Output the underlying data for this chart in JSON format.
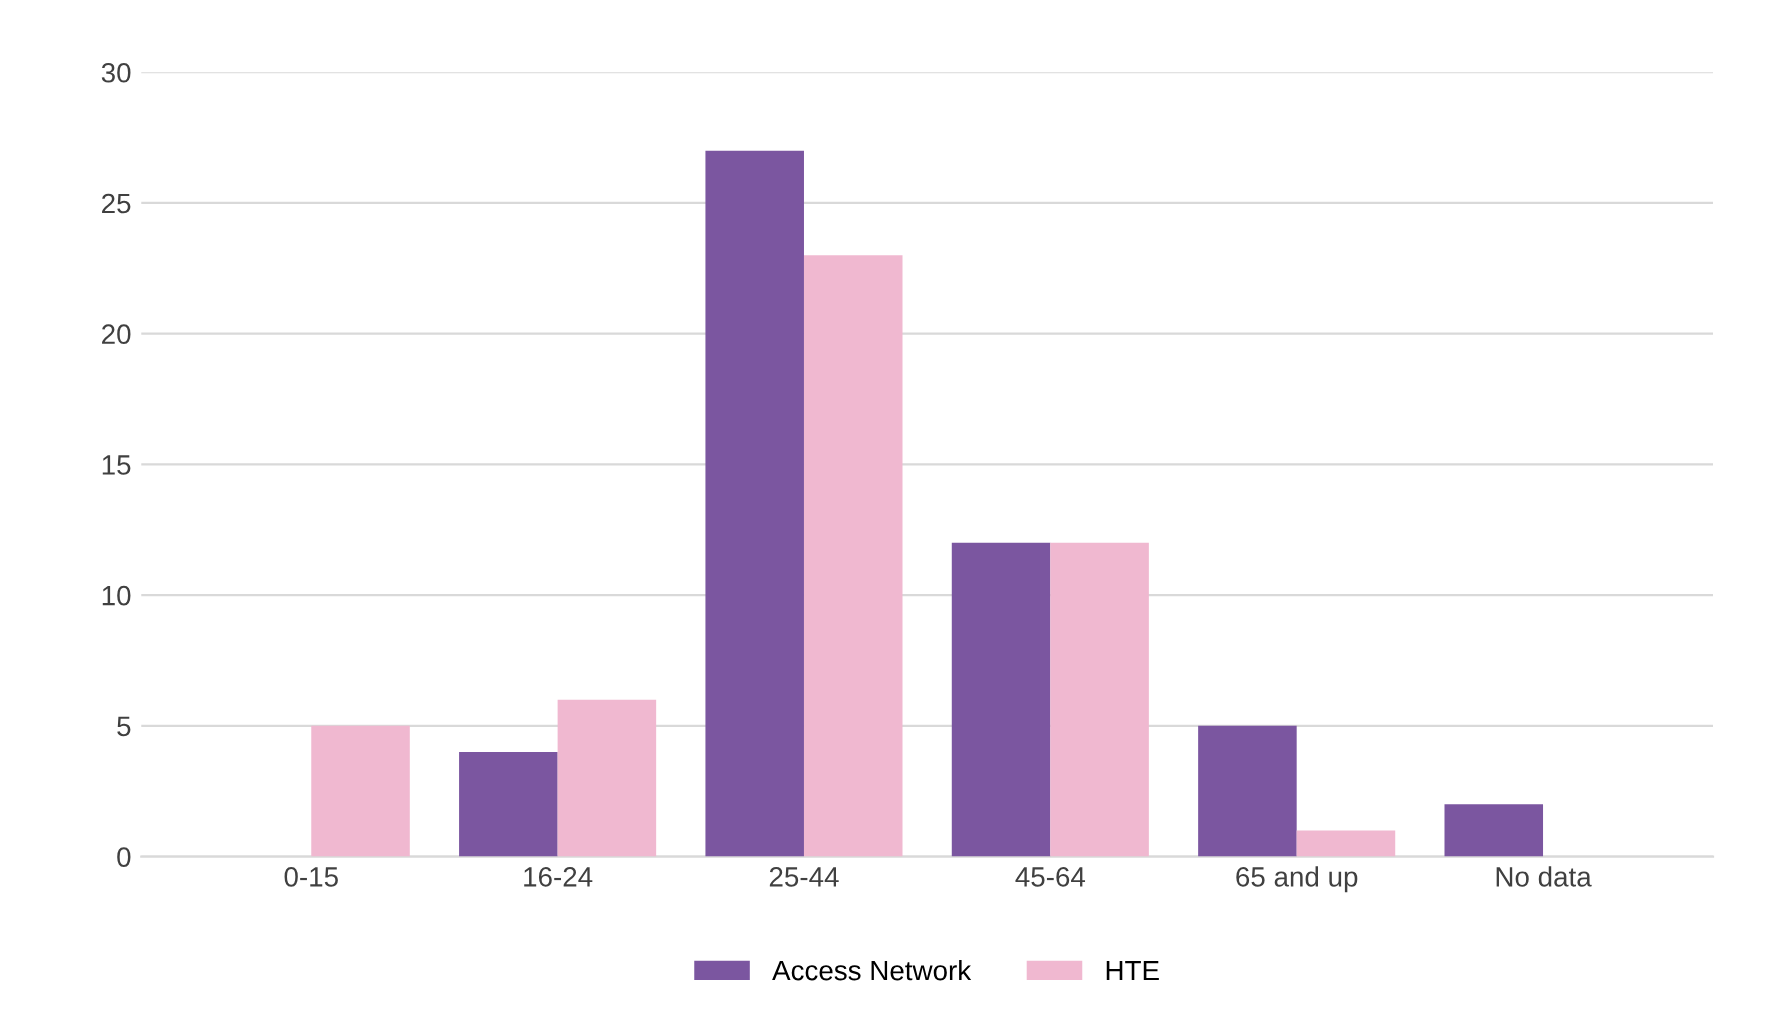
{
  "chart_data": {
    "type": "bar",
    "categories": [
      "0-15",
      "16-24",
      "25-44",
      "45-64",
      "65 and up",
      "No data"
    ],
    "series": [
      {
        "name": "Access Network",
        "color": "#7b56a0",
        "values": [
          0,
          4,
          27,
          12,
          5,
          2
        ]
      },
      {
        "name": "HTE",
        "color": "#f0b8d0",
        "values": [
          5,
          6,
          23,
          12,
          1,
          0
        ]
      }
    ],
    "ylim": [
      0,
      30
    ],
    "yticks": [
      0,
      5,
      10,
      15,
      20,
      25,
      30
    ],
    "grid": "y",
    "legend": "bottom"
  }
}
